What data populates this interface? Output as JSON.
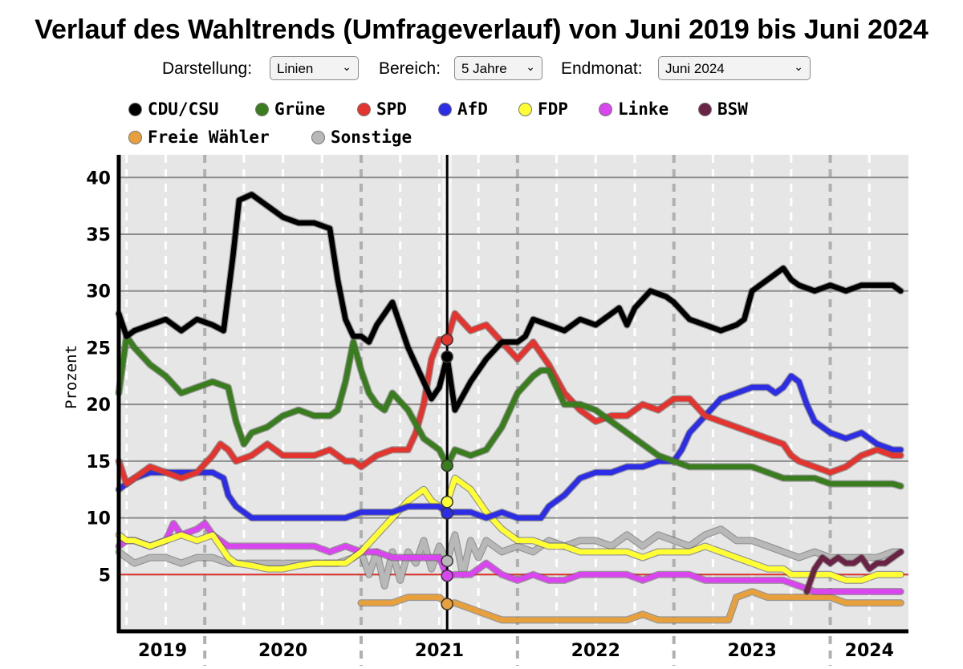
{
  "header": {
    "title": "Verlauf des Wahltrends (Umfrageverlauf) von Juni 2019 bis Juni 2024"
  },
  "controls": {
    "darstellung_label": "Darstellung:",
    "darstellung_value": "Linien",
    "bereich_label": "Bereich:",
    "bereich_value": "5 Jahre",
    "endmonat_label": "Endmonat:",
    "endmonat_value": "Juni 2024"
  },
  "legend": {
    "items": [
      {
        "label": "CDU/CSU",
        "color": "#000000"
      },
      {
        "label": "Grüne",
        "color": "#3a7d1e"
      },
      {
        "label": "SPD",
        "color": "#e3342f"
      },
      {
        "label": "AfD",
        "color": "#2d2de6"
      },
      {
        "label": "FDP",
        "color": "#ffff33"
      },
      {
        "label": "Linke",
        "color": "#d946ef"
      },
      {
        "label": "BSW",
        "color": "#6b2345"
      },
      {
        "label": "Freie Wähler",
        "color": "#e8a03c"
      },
      {
        "label": "Sonstige",
        "color": "#b8b8b8"
      }
    ]
  },
  "chart_data": {
    "type": "line",
    "title": "Verlauf des Wahltrends (Umfrageverlauf) von Juni 2019 bis Juni 2024",
    "xlabel": "",
    "ylabel": "Prozent",
    "xlim": [
      2019.45,
      2024.5
    ],
    "ylim": [
      0,
      42
    ],
    "yticks": [
      5,
      10,
      15,
      20,
      25,
      30,
      35,
      40
    ],
    "xtick_labels": [
      "2019",
      "2020",
      "2021",
      "2022",
      "2023",
      "2024"
    ],
    "threshold": 5,
    "cursor": 2021.55,
    "series": [
      {
        "name": "CDU/CSU",
        "color": "#000000",
        "x": [
          2019.45,
          2019.5,
          2019.55,
          2019.65,
          2019.75,
          2019.85,
          2019.95,
          2020.05,
          2020.12,
          2020.18,
          2020.22,
          2020.3,
          2020.4,
          2020.5,
          2020.6,
          2020.7,
          2020.8,
          2020.85,
          2020.9,
          2020.95,
          2021.0,
          2021.05,
          2021.1,
          2021.2,
          2021.3,
          2021.4,
          2021.45,
          2021.5,
          2021.55,
          2021.6,
          2021.7,
          2021.8,
          2021.9,
          2022.0,
          2022.05,
          2022.1,
          2022.2,
          2022.3,
          2022.4,
          2022.5,
          2022.6,
          2022.65,
          2022.7,
          2022.75,
          2022.85,
          2022.95,
          2023.0,
          2023.1,
          2023.2,
          2023.3,
          2023.4,
          2023.45,
          2023.5,
          2023.6,
          2023.7,
          2023.75,
          2023.8,
          2023.9,
          2024.0,
          2024.1,
          2024.2,
          2024.3,
          2024.4,
          2024.45
        ],
        "y": [
          28,
          26,
          26.5,
          27,
          27.5,
          26.5,
          27.5,
          27,
          26.5,
          33,
          38,
          38.5,
          37.5,
          36.5,
          36,
          36,
          35.5,
          31,
          27.5,
          26,
          26,
          25.5,
          27,
          29,
          25,
          22,
          20.5,
          21.5,
          24.2,
          19.5,
          22,
          24,
          25.5,
          25.5,
          26,
          27.5,
          27,
          26.5,
          27.5,
          27,
          28,
          28.5,
          27,
          28.5,
          30,
          29.5,
          29,
          27.5,
          27,
          26.5,
          27,
          27.5,
          30,
          31,
          32,
          31,
          30.5,
          30,
          30.5,
          30,
          30.5,
          30.5,
          30.5,
          30
        ]
      },
      {
        "name": "Grüne",
        "color": "#3a7d1e",
        "x": [
          2019.45,
          2019.5,
          2019.55,
          2019.65,
          2019.75,
          2019.85,
          2019.95,
          2020.05,
          2020.15,
          2020.2,
          2020.25,
          2020.3,
          2020.4,
          2020.5,
          2020.6,
          2020.7,
          2020.8,
          2020.85,
          2020.9,
          2020.95,
          2021.0,
          2021.05,
          2021.1,
          2021.15,
          2021.2,
          2021.3,
          2021.4,
          2021.45,
          2021.5,
          2021.55,
          2021.6,
          2021.7,
          2021.8,
          2021.9,
          2022.0,
          2022.1,
          2022.15,
          2022.2,
          2022.3,
          2022.4,
          2022.5,
          2022.6,
          2022.7,
          2022.8,
          2022.9,
          2023.0,
          2023.1,
          2023.2,
          2023.3,
          2023.4,
          2023.5,
          2023.6,
          2023.7,
          2023.8,
          2023.9,
          2024.0,
          2024.1,
          2024.2,
          2024.3,
          2024.4,
          2024.45
        ],
        "y": [
          21,
          26,
          25,
          23.5,
          22.5,
          21,
          21.5,
          22,
          21.5,
          18.5,
          16.5,
          17.5,
          18,
          19,
          19.5,
          19,
          19,
          19.5,
          22,
          25.5,
          23,
          21,
          20,
          19.5,
          21,
          19.5,
          17,
          16.5,
          16,
          14.6,
          16,
          15.5,
          16,
          18,
          21,
          22.5,
          23,
          23,
          20,
          20,
          19.5,
          18.5,
          17.5,
          16.5,
          15.5,
          15,
          14.5,
          14.5,
          14.5,
          14.5,
          14.5,
          14,
          13.5,
          13.5,
          13.5,
          13,
          13,
          13,
          13,
          13,
          12.8
        ]
      },
      {
        "name": "SPD",
        "color": "#e3342f",
        "x": [
          2019.45,
          2019.5,
          2019.55,
          2019.65,
          2019.75,
          2019.85,
          2019.95,
          2020.05,
          2020.1,
          2020.15,
          2020.2,
          2020.3,
          2020.4,
          2020.5,
          2020.6,
          2020.7,
          2020.8,
          2020.85,
          2020.9,
          2020.95,
          2021.0,
          2021.1,
          2021.2,
          2021.3,
          2021.35,
          2021.4,
          2021.45,
          2021.5,
          2021.55,
          2021.6,
          2021.7,
          2021.8,
          2021.9,
          2022.0,
          2022.1,
          2022.2,
          2022.3,
          2022.4,
          2022.5,
          2022.6,
          2022.7,
          2022.8,
          2022.9,
          2023.0,
          2023.1,
          2023.2,
          2023.3,
          2023.4,
          2023.5,
          2023.6,
          2023.7,
          2023.75,
          2023.8,
          2023.9,
          2024.0,
          2024.1,
          2024.2,
          2024.3,
          2024.4,
          2024.45
        ],
        "y": [
          15,
          13,
          13.5,
          14.5,
          14,
          13.5,
          14,
          15.5,
          16.5,
          16,
          15,
          15.5,
          16.5,
          15.5,
          15.5,
          15.5,
          16,
          15.5,
          15,
          15,
          14.5,
          15.5,
          16,
          16,
          17.5,
          20,
          24,
          25.7,
          25.7,
          28,
          26.5,
          27,
          25.5,
          24,
          25.5,
          23.5,
          21,
          19.5,
          18.5,
          19,
          19,
          20,
          19.5,
          20.5,
          20.5,
          19,
          18.5,
          18,
          17.5,
          17,
          16.5,
          15.5,
          15,
          14.5,
          14,
          14.5,
          15.5,
          16,
          15.5,
          15.5
        ]
      },
      {
        "name": "AfD",
        "color": "#2d2de6",
        "x": [
          2019.45,
          2019.5,
          2019.55,
          2019.65,
          2019.75,
          2019.85,
          2019.95,
          2020.05,
          2020.12,
          2020.15,
          2020.2,
          2020.25,
          2020.3,
          2020.4,
          2020.5,
          2020.6,
          2020.7,
          2020.8,
          2020.9,
          2021.0,
          2021.1,
          2021.2,
          2021.3,
          2021.4,
          2021.5,
          2021.55,
          2021.6,
          2021.7,
          2021.8,
          2021.9,
          2022.0,
          2022.1,
          2022.15,
          2022.2,
          2022.3,
          2022.4,
          2022.5,
          2022.6,
          2022.7,
          2022.8,
          2022.9,
          2023.0,
          2023.05,
          2023.1,
          2023.2,
          2023.3,
          2023.4,
          2023.5,
          2023.6,
          2023.65,
          2023.7,
          2023.75,
          2023.8,
          2023.85,
          2023.9,
          2024.0,
          2024.1,
          2024.2,
          2024.3,
          2024.4,
          2024.45
        ],
        "y": [
          12.5,
          13,
          13.5,
          14,
          14,
          14,
          14,
          14,
          13.5,
          12,
          11,
          10.5,
          10,
          10,
          10,
          10,
          10,
          10,
          10,
          10.5,
          10.5,
          10.5,
          11,
          11,
          11,
          10.4,
          10.5,
          10.5,
          10,
          10.5,
          10,
          10,
          10,
          11,
          12,
          13.5,
          14,
          14,
          14.5,
          14.5,
          15,
          15,
          16,
          17.5,
          19,
          20.5,
          21,
          21.5,
          21.5,
          21,
          21.5,
          22.5,
          22,
          20,
          18.5,
          17.5,
          17,
          17.5,
          16.5,
          16,
          16
        ]
      },
      {
        "name": "FDP",
        "color": "#ffff33",
        "x": [
          2019.45,
          2019.5,
          2019.55,
          2019.65,
          2019.75,
          2019.85,
          2019.95,
          2020.05,
          2020.1,
          2020.15,
          2020.2,
          2020.3,
          2020.4,
          2020.5,
          2020.6,
          2020.7,
          2020.8,
          2020.9,
          2020.95,
          2021.0,
          2021.1,
          2021.2,
          2021.3,
          2021.4,
          2021.45,
          2021.5,
          2021.55,
          2021.6,
          2021.7,
          2021.8,
          2021.9,
          2022.0,
          2022.1,
          2022.2,
          2022.3,
          2022.4,
          2022.5,
          2022.6,
          2022.7,
          2022.8,
          2022.9,
          2023.0,
          2023.1,
          2023.2,
          2023.3,
          2023.4,
          2023.5,
          2023.6,
          2023.7,
          2023.75,
          2023.8,
          2023.9,
          2024.0,
          2024.1,
          2024.2,
          2024.3,
          2024.4,
          2024.45
        ],
        "y": [
          8.5,
          8,
          8,
          7.5,
          8,
          8.5,
          8,
          8.5,
          7.5,
          6.5,
          6,
          5.8,
          5.5,
          5.5,
          5.8,
          6,
          6,
          6,
          6.5,
          7,
          8.5,
          10,
          11.5,
          12.5,
          11.5,
          11,
          11.4,
          13.5,
          12.5,
          10.5,
          9,
          8,
          8,
          7.5,
          7.5,
          7,
          7,
          7,
          7,
          6.5,
          7,
          7,
          7,
          7.5,
          7,
          6.5,
          6,
          5.5,
          5.5,
          5,
          5,
          5,
          5,
          4.5,
          4.5,
          5,
          5,
          5
        ]
      },
      {
        "name": "Linke",
        "color": "#d946ef",
        "x": [
          2019.45,
          2019.5,
          2019.55,
          2019.65,
          2019.75,
          2019.8,
          2019.85,
          2019.95,
          2020.0,
          2020.05,
          2020.1,
          2020.15,
          2020.2,
          2020.3,
          2020.4,
          2020.5,
          2020.6,
          2020.7,
          2020.8,
          2020.9,
          2021.0,
          2021.1,
          2021.2,
          2021.3,
          2021.4,
          2021.5,
          2021.55,
          2021.6,
          2021.7,
          2021.8,
          2021.9,
          2022.0,
          2022.1,
          2022.2,
          2022.3,
          2022.4,
          2022.5,
          2022.6,
          2022.7,
          2022.8,
          2022.9,
          2023.0,
          2023.1,
          2023.2,
          2023.3,
          2023.4,
          2023.5,
          2023.6,
          2023.7,
          2023.8,
          2023.9,
          2024.0,
          2024.1,
          2024.2,
          2024.3,
          2024.4,
          2024.45
        ],
        "y": [
          7.5,
          8,
          8,
          7.5,
          8,
          9.5,
          8.5,
          9,
          9.5,
          8.5,
          8,
          7.5,
          7.5,
          7.5,
          7.5,
          7.5,
          7.5,
          7.5,
          7,
          7.5,
          7,
          7,
          6.5,
          6.5,
          6.5,
          6.5,
          4.9,
          5,
          5,
          6,
          5,
          4.5,
          5,
          4.5,
          4.5,
          5,
          5,
          5,
          5,
          4.5,
          5,
          5,
          5,
          4.5,
          4.5,
          4.5,
          4.5,
          4.5,
          4.5,
          4,
          3.5,
          3.5,
          3.5,
          3.5,
          3.5,
          3.5,
          3.5
        ]
      },
      {
        "name": "BSW",
        "color": "#6b2345",
        "x": [
          2023.85,
          2023.9,
          2023.95,
          2024.0,
          2024.05,
          2024.1,
          2024.15,
          2024.2,
          2024.25,
          2024.3,
          2024.35,
          2024.4,
          2024.45
        ],
        "y": [
          3.5,
          5.5,
          6.5,
          6,
          6.5,
          6,
          6,
          6.5,
          5.5,
          6,
          6,
          6.5,
          7
        ]
      },
      {
        "name": "Freie Wähler",
        "color": "#e8a03c",
        "x": [
          2021.0,
          2021.1,
          2021.2,
          2021.3,
          2021.4,
          2021.5,
          2021.55,
          2021.6,
          2021.7,
          2021.8,
          2021.9,
          2022.0,
          2022.1,
          2022.2,
          2022.3,
          2022.4,
          2022.5,
          2022.6,
          2022.7,
          2022.8,
          2022.9,
          2023.0,
          2023.1,
          2023.2,
          2023.3,
          2023.35,
          2023.4,
          2023.5,
          2023.6,
          2023.7,
          2023.8,
          2023.9,
          2024.0,
          2024.1,
          2024.2,
          2024.3,
          2024.4,
          2024.45
        ],
        "y": [
          2.5,
          2.5,
          2.5,
          3,
          3,
          3,
          2.4,
          2.5,
          2,
          1.5,
          1,
          1,
          1,
          1,
          1,
          1,
          1,
          1,
          1,
          1.5,
          1,
          1,
          1,
          1,
          1,
          1,
          3,
          3.5,
          3,
          3,
          3,
          3,
          3,
          2.5,
          2.5,
          2.5,
          2.5,
          2.5
        ]
      },
      {
        "name": "Sonstige",
        "color": "#b8b8b8",
        "x": [
          2019.45,
          2019.5,
          2019.55,
          2019.65,
          2019.75,
          2019.85,
          2019.95,
          2020.05,
          2020.15,
          2020.25,
          2020.35,
          2020.45,
          2020.55,
          2020.65,
          2020.75,
          2020.85,
          2020.95,
          2021.0,
          2021.05,
          2021.1,
          2021.15,
          2021.2,
          2021.25,
          2021.3,
          2021.35,
          2021.4,
          2021.45,
          2021.5,
          2021.55,
          2021.6,
          2021.65,
          2021.7,
          2021.75,
          2021.8,
          2021.9,
          2022.0,
          2022.1,
          2022.2,
          2022.3,
          2022.4,
          2022.5,
          2022.6,
          2022.7,
          2022.8,
          2022.9,
          2023.0,
          2023.1,
          2023.2,
          2023.3,
          2023.4,
          2023.5,
          2023.6,
          2023.7,
          2023.8,
          2023.9,
          2024.0,
          2024.1,
          2024.2,
          2024.3,
          2024.4,
          2024.45
        ],
        "y": [
          7,
          6.5,
          6,
          6.5,
          6.5,
          6,
          6.5,
          6.5,
          6,
          6,
          6,
          6,
          6,
          6,
          6,
          6,
          6.5,
          7,
          5,
          7,
          4,
          7,
          4.5,
          7,
          6,
          8,
          5.5,
          7.5,
          6.2,
          8.5,
          5,
          8,
          6.5,
          8,
          7,
          7.5,
          7,
          8,
          7.5,
          8,
          8,
          7.5,
          8.5,
          7.5,
          8.5,
          8,
          7.5,
          8.5,
          9,
          8,
          8,
          7.5,
          7,
          6.5,
          7,
          6.5,
          6.5,
          6.5,
          6.5,
          7,
          7
        ]
      }
    ],
    "cursor_values": [
      {
        "name": "SPD",
        "value": 25.7,
        "color": "#e3342f"
      },
      {
        "name": "CDU/CSU",
        "value": 24.2,
        "color": "#000000"
      },
      {
        "name": "Grüne",
        "value": 14.6,
        "color": "#3a7d1e"
      },
      {
        "name": "FDP",
        "value": 11.4,
        "color": "#ffff33"
      },
      {
        "name": "AfD",
        "value": 10.4,
        "color": "#2d2de6"
      },
      {
        "name": "Sonstige",
        "value": 6.2,
        "color": "#b8b8b8"
      },
      {
        "name": "Linke",
        "value": 4.9,
        "color": "#d946ef"
      },
      {
        "name": "Freie Wähler",
        "value": 2.4,
        "color": "#e8a03c"
      }
    ]
  }
}
